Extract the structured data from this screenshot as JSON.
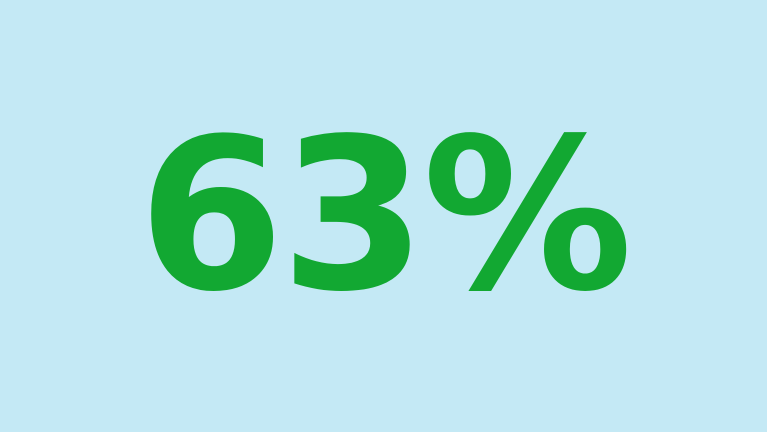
{
  "stat": {
    "value": "63%"
  },
  "colors": {
    "background": "#c4e9f5",
    "text": "#12a832"
  }
}
